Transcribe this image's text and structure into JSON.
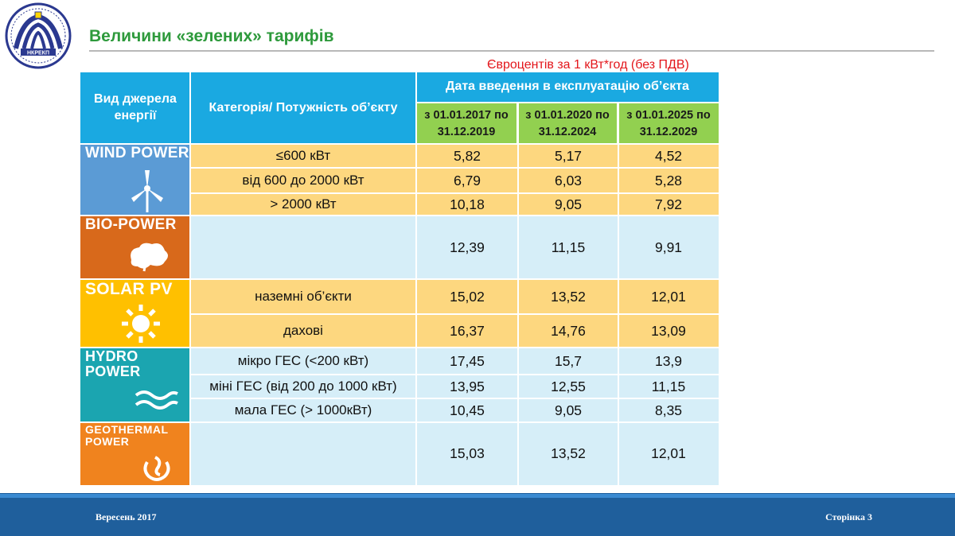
{
  "logo": {
    "text": "НКРЕКП"
  },
  "title": "Величини «зелених» тарифів",
  "units_note": "Євроцентів за 1 кВт*год (без ПДВ)",
  "table": {
    "col_source": "Вид джерела енергії",
    "col_category": "Категорія/ Потужність об’єкту",
    "col_date_group": "Дата введення в експлуатацію об’єкта",
    "periods": [
      "з 01.01.2017 по 31.12.2019",
      "з 01.01.2020 по 31.12.2024",
      "з 01.01.2025 по 31.12.2029"
    ],
    "sources": [
      {
        "label": "WIND POWER",
        "icon": "wind-turbine-icon",
        "color": "#5b9bd5",
        "rows": [
          {
            "category": "≤600 кВт",
            "values": [
              "5,82",
              "5,17",
              "4,52"
            ]
          },
          {
            "category": "від 600 до 2000 кВт",
            "values": [
              "6,79",
              "6,03",
              "5,28"
            ]
          },
          {
            "category": "> 2000 кВт",
            "values": [
              "10,18",
              "9,05",
              "7,92"
            ]
          }
        ]
      },
      {
        "label": "BIO-POWER",
        "icon": "leaf-icon",
        "color": "#d8691b",
        "rows": [
          {
            "category": "",
            "values": [
              "12,39",
              "11,15",
              "9,91"
            ]
          }
        ]
      },
      {
        "label": "SOLAR PV",
        "icon": "sun-icon",
        "color": "#ffc000",
        "rows": [
          {
            "category": "наземні об’єкти",
            "values": [
              "15,02",
              "13,52",
              "12,01"
            ]
          },
          {
            "category": "дахові",
            "values": [
              "16,37",
              "14,76",
              "13,09"
            ]
          }
        ]
      },
      {
        "label": "HYDRO POWER",
        "icon": "water-waves-icon",
        "color": "#1ba5b0",
        "rows": [
          {
            "category": "мікро ГЕС (<200 кВт)",
            "values": [
              "17,45",
              "15,7",
              "13,9"
            ]
          },
          {
            "category": "міні ГЕС (від 200 до 1000 кВт)",
            "values": [
              "13,95",
              "12,55",
              "11,15"
            ]
          },
          {
            "category": "мала ГЕС (> 1000кВт)",
            "values": [
              "10,45",
              "9,05",
              "8,35"
            ]
          }
        ]
      },
      {
        "label": "GEOTHERMAL POWER",
        "icon": "geothermal-swirl-icon",
        "color": "#f0831e",
        "rows": [
          {
            "category": "",
            "values": [
              "15,03",
              "13,52",
              "12,01"
            ]
          }
        ]
      }
    ]
  },
  "footer": {
    "date": "Вересень 2017",
    "page": "Сторінка 3"
  },
  "colors": {
    "title_green": "#2e9a3c",
    "header_blue": "#1aa9e1",
    "period_green": "#92d050",
    "row_yellow": "#fdd77f",
    "row_blue": "#d6eef8",
    "footer_blue": "#1f5f9c"
  }
}
